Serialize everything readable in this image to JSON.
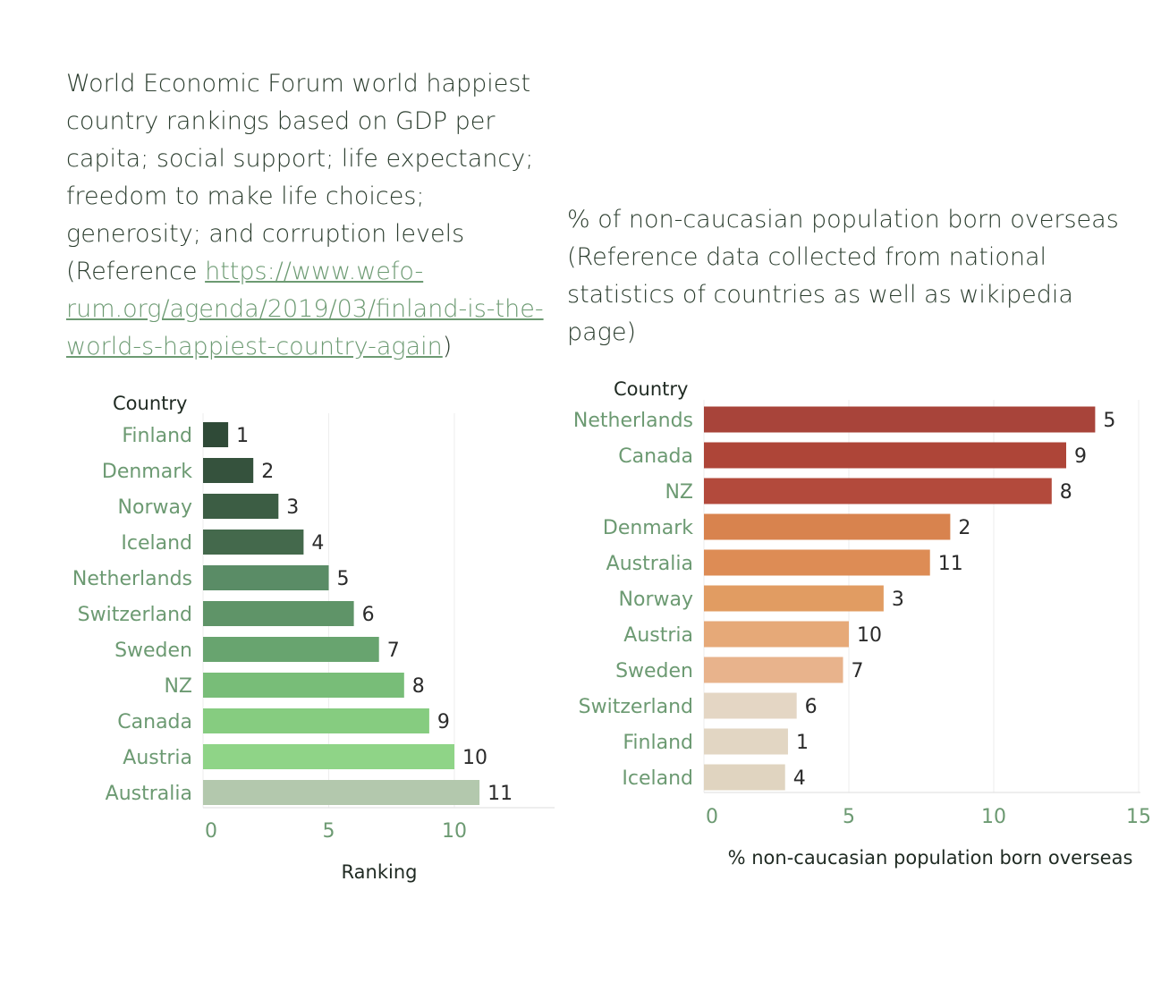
{
  "left_description": {
    "text": "World Economic Forum world happiest country rankings based on GDP per capita; social support; life expectancy; freedom to make life choices; generosity; and corruption levels (Reference ",
    "link": "https://www.wefo-rum.org/agenda/2019/03/finland-is-the-world-s-happiest-country-again",
    "close": ")"
  },
  "right_description": "% of non-caucasian population born overseas (Reference data collected from national statistics of countries as well as wikipedia page)",
  "chart_data": [
    {
      "type": "bar",
      "orientation": "horizontal",
      "row_header": "Country",
      "categories": [
        "Finland",
        "Denmark",
        "Norway",
        "Iceland",
        "Netherlands",
        "Switzerland",
        "Sweden",
        "NZ",
        "Canada",
        "Austria",
        "Australia"
      ],
      "values": [
        1,
        2,
        3,
        4,
        5,
        6,
        7,
        8,
        9,
        10,
        11
      ],
      "data_labels": [
        "1",
        "2",
        "3",
        "4",
        "5",
        "6",
        "7",
        "8",
        "9",
        "10",
        "11"
      ],
      "colors": [
        "#2f4a37",
        "#35523d",
        "#3c5d44",
        "#44694c",
        "#5a8c66",
        "#5f9468",
        "#68a46f",
        "#78bd78",
        "#86cc80",
        "#8fd487",
        "#b3c8ad"
      ],
      "label_color": "#6c9a72",
      "xlabel": "Ranking",
      "xticks": [
        0,
        5,
        10
      ],
      "xlim": [
        0,
        14
      ],
      "grid": true
    },
    {
      "type": "bar",
      "orientation": "horizontal",
      "row_header": "Country",
      "categories": [
        "Netherlands",
        "Canada",
        "NZ",
        "Denmark",
        "Australia",
        "Norway",
        "Austria",
        "Sweden",
        "Switzerland",
        "Finland",
        "Iceland"
      ],
      "values": [
        13.5,
        12.5,
        12.0,
        8.5,
        7.8,
        6.2,
        5.0,
        4.8,
        3.2,
        2.9,
        2.8
      ],
      "data_labels": [
        "5",
        "9",
        "8",
        "2",
        "11",
        "3",
        "10",
        "7",
        "6",
        "1",
        "4"
      ],
      "colors": [
        "#a8443a",
        "#ae4538",
        "#b34a3c",
        "#d8834e",
        "#dd8c55",
        "#e19c62",
        "#e6a978",
        "#e8b38c",
        "#e4d6c4",
        "#e2d6c3",
        "#e0d4c0"
      ],
      "label_color": "#6c9a72",
      "xlabel": "% non-caucasian population born overseas",
      "xticks": [
        0,
        5,
        10,
        15
      ],
      "xlim": [
        0,
        15
      ],
      "grid": true
    }
  ]
}
